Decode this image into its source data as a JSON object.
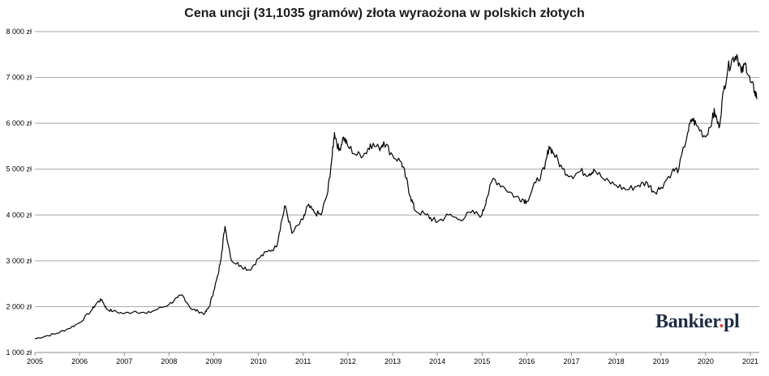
{
  "chart_data": {
    "type": "line",
    "title": "Cena uncji (31,1035 gramów) złota wyraożona w polskich złotych",
    "xlabel": "",
    "ylabel": "",
    "xlim": [
      2005.0,
      2021.2
    ],
    "ylim": [
      1000,
      8000
    ],
    "y_ticks": [
      1000,
      2000,
      3000,
      4000,
      5000,
      6000,
      7000,
      8000
    ],
    "y_tick_labels": [
      "1 000 zł",
      "2 000 zł",
      "3 000 zł",
      "4 000 zł",
      "5 000 zł",
      "6 000 zł",
      "7 000 zł",
      "8 000 zł"
    ],
    "x_ticks": [
      2005,
      2006,
      2007,
      2008,
      2009,
      2010,
      2011,
      2012,
      2013,
      2014,
      2015,
      2016,
      2017,
      2018,
      2019,
      2020,
      2021
    ],
    "x_tick_labels": [
      "2005",
      "2006",
      "2007",
      "2008",
      "2009",
      "2010",
      "2011",
      "2012",
      "2013",
      "2014",
      "2015",
      "2016",
      "2017",
      "2018",
      "2019",
      "2020",
      "2021"
    ],
    "grid": true,
    "legend": "none",
    "line_color": "#000000",
    "series": [
      {
        "x": [
          2005.0,
          2005.25,
          2005.5,
          2005.75,
          2006.0,
          2006.25,
          2006.4,
          2006.5,
          2006.6,
          2006.75,
          2007.0,
          2007.25,
          2007.5,
          2007.75,
          2008.0,
          2008.2,
          2008.3,
          2008.5,
          2008.65,
          2008.8,
          2008.9,
          2009.0,
          2009.1,
          2009.18,
          2009.25,
          2009.4,
          2009.6,
          2009.8,
          2010.0,
          2010.2,
          2010.4,
          2010.5,
          2010.6,
          2010.75,
          2011.0,
          2011.1,
          2011.25,
          2011.4,
          2011.55,
          2011.65,
          2011.7,
          2011.8,
          2011.9,
          2012.0,
          2012.2,
          2012.4,
          2012.5,
          2012.7,
          2012.8,
          2013.0,
          2013.2,
          2013.3,
          2013.4,
          2013.5,
          2013.75,
          2013.9,
          2014.0,
          2014.25,
          2014.5,
          2014.75,
          2015.0,
          2015.1,
          2015.25,
          2015.5,
          2015.75,
          2015.9,
          2016.0,
          2016.2,
          2016.4,
          2016.5,
          2016.6,
          2016.8,
          2017.0,
          2017.2,
          2017.4,
          2017.5,
          2017.75,
          2018.0,
          2018.25,
          2018.5,
          2018.7,
          2018.85,
          2019.0,
          2019.25,
          2019.4,
          2019.6,
          2019.7,
          2019.8,
          2020.0,
          2020.15,
          2020.2,
          2020.3,
          2020.4,
          2020.5,
          2020.6,
          2020.7,
          2020.8,
          2020.9,
          2021.0,
          2021.1,
          2021.15
        ],
        "y": [
          1300,
          1360,
          1420,
          1520,
          1650,
          1900,
          2100,
          2150,
          1950,
          1900,
          1850,
          1900,
          1850,
          1950,
          2050,
          2200,
          2250,
          1950,
          1900,
          1850,
          2000,
          2350,
          2700,
          3200,
          3750,
          3000,
          2900,
          2800,
          3050,
          3200,
          3300,
          3800,
          4200,
          3600,
          3900,
          4200,
          4050,
          4000,
          4500,
          5300,
          5800,
          5400,
          5700,
          5500,
          5300,
          5350,
          5550,
          5450,
          5600,
          5300,
          5150,
          4800,
          4400,
          4100,
          4000,
          3900,
          3850,
          4000,
          3900,
          4050,
          4000,
          4350,
          4800,
          4600,
          4400,
          4350,
          4300,
          4700,
          5000,
          5500,
          5350,
          5000,
          4850,
          4950,
          4900,
          5000,
          4750,
          4650,
          4550,
          4650,
          4700,
          4500,
          4600,
          4950,
          5000,
          5800,
          6100,
          5950,
          5700,
          6100,
          6250,
          5900,
          6700,
          7200,
          7400,
          7500,
          7100,
          7300,
          6900,
          6700,
          6550
        ]
      }
    ]
  },
  "brand": {
    "name": "Bankier",
    "dot": ".",
    "suffix": "pl",
    "color": "#1f2c45",
    "dot_color": "#e0353d"
  }
}
